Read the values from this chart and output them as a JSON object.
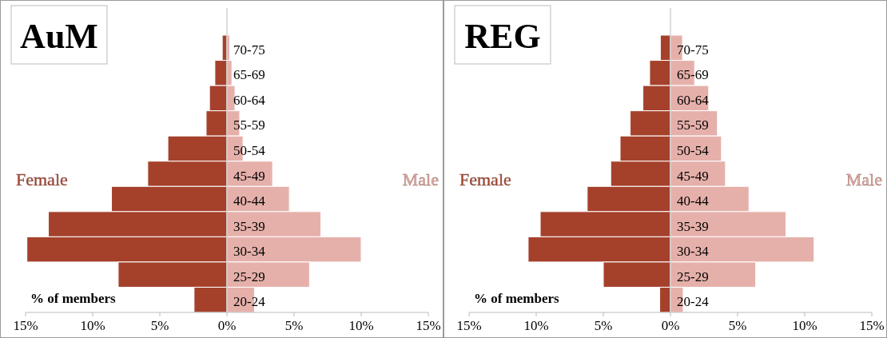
{
  "chart_data": [
    {
      "type": "bar",
      "title": "AuM",
      "xlabel": "% of members",
      "orientation": "horizontal",
      "stacked": true,
      "categories": [
        "70-75",
        "65-69",
        "60-64",
        "55-59",
        "50-54",
        "45-49",
        "40-44",
        "35-39",
        "30-34",
        "25-29",
        "20-24"
      ],
      "series": [
        {
          "name": "Female",
          "color": "#a5412b",
          "values": [
            -0.35,
            -0.9,
            -1.3,
            -1.55,
            -4.4,
            -5.9,
            -8.6,
            -13.3,
            -14.9,
            -8.1,
            -2.45
          ]
        },
        {
          "name": "Male",
          "color": "#e6b0aa",
          "values": [
            0.2,
            0.37,
            0.6,
            0.95,
            1.2,
            3.4,
            4.65,
            7.0,
            10.0,
            6.15,
            2.05
          ]
        }
      ],
      "xlim": [
        -15,
        15
      ],
      "xticks": [
        {
          "value": -15,
          "label": "15%"
        },
        {
          "value": -10,
          "label": "10%"
        },
        {
          "value": -5,
          "label": "5%"
        },
        {
          "value": 0,
          "label": "0%"
        },
        {
          "value": 5,
          "label": "5%"
        },
        {
          "value": 10,
          "label": "10%"
        },
        {
          "value": 15,
          "label": "15%"
        }
      ]
    },
    {
      "type": "bar",
      "title": "REG",
      "xlabel": "% of members",
      "orientation": "horizontal",
      "stacked": true,
      "categories": [
        "70-75",
        "65-69",
        "60-64",
        "55-59",
        "50-54",
        "45-49",
        "40-44",
        "35-39",
        "30-34",
        "25-29",
        "20-24"
      ],
      "series": [
        {
          "name": "Female",
          "color": "#a5412b",
          "values": [
            -0.75,
            -1.55,
            -2.05,
            -3.0,
            -3.75,
            -4.45,
            -6.2,
            -9.7,
            -10.6,
            -5.0,
            -0.8
          ]
        },
        {
          "name": "Male",
          "color": "#e6b0aa",
          "values": [
            0.9,
            1.8,
            2.85,
            3.5,
            3.8,
            4.1,
            5.85,
            8.6,
            10.7,
            6.35,
            0.95
          ]
        }
      ],
      "xlim": [
        -15,
        15
      ],
      "xticks": [
        {
          "value": -15,
          "label": "15%"
        },
        {
          "value": -10,
          "label": "10%"
        },
        {
          "value": -5,
          "label": "5%"
        },
        {
          "value": 0,
          "label": "0%"
        },
        {
          "value": 5,
          "label": "5%"
        },
        {
          "value": 10,
          "label": "10%"
        },
        {
          "value": 15,
          "label": "15%"
        }
      ]
    }
  ]
}
